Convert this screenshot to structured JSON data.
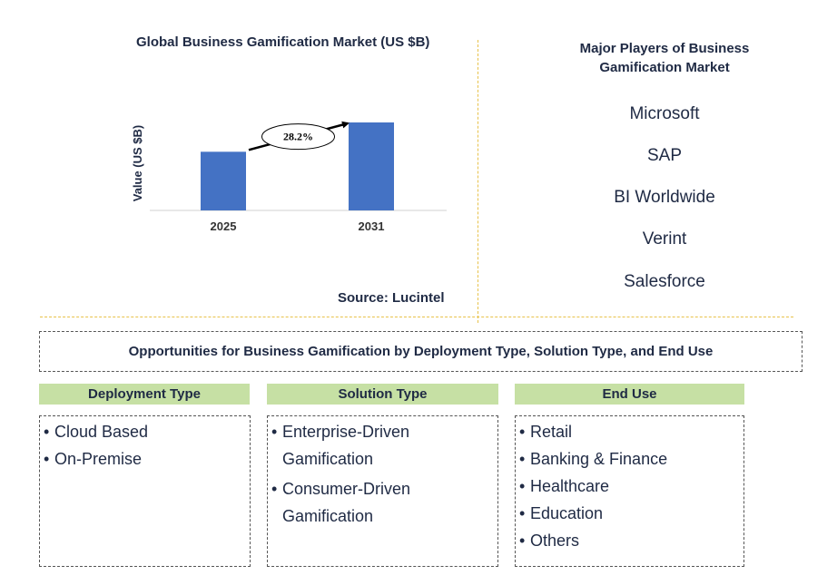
{
  "chart_data": {
    "type": "bar",
    "title": "Global Business Gamification Market (US $B)",
    "ylabel": "Value (US $B)",
    "xlabel": "",
    "categories": [
      "2025",
      "2031"
    ],
    "values": [
      1.0,
      1.5
    ],
    "annotation": "28.2%",
    "grid": false,
    "bar_color": "#4472c4"
  },
  "source": "Source: Lucintel",
  "players": {
    "title": "Major Players of Business Gamification Market",
    "items": [
      "Microsoft",
      "SAP",
      "BI Worldwide",
      "Verint",
      "Salesforce"
    ]
  },
  "opportunities": {
    "title": "Opportunities for Business Gamification by Deployment Type, Solution Type, and End Use",
    "header_color": "#c6e0a4",
    "categories": [
      {
        "label": "Deployment Type",
        "items": [
          "Cloud Based",
          "On-Premise"
        ]
      },
      {
        "label": "Solution Type",
        "items": [
          "Enterprise-Driven Gamification",
          "Consumer-Driven Gamification"
        ]
      },
      {
        "label": "End Use",
        "items": [
          "Retail",
          "Banking & Finance",
          "Healthcare",
          "Education",
          "Others"
        ]
      }
    ]
  }
}
